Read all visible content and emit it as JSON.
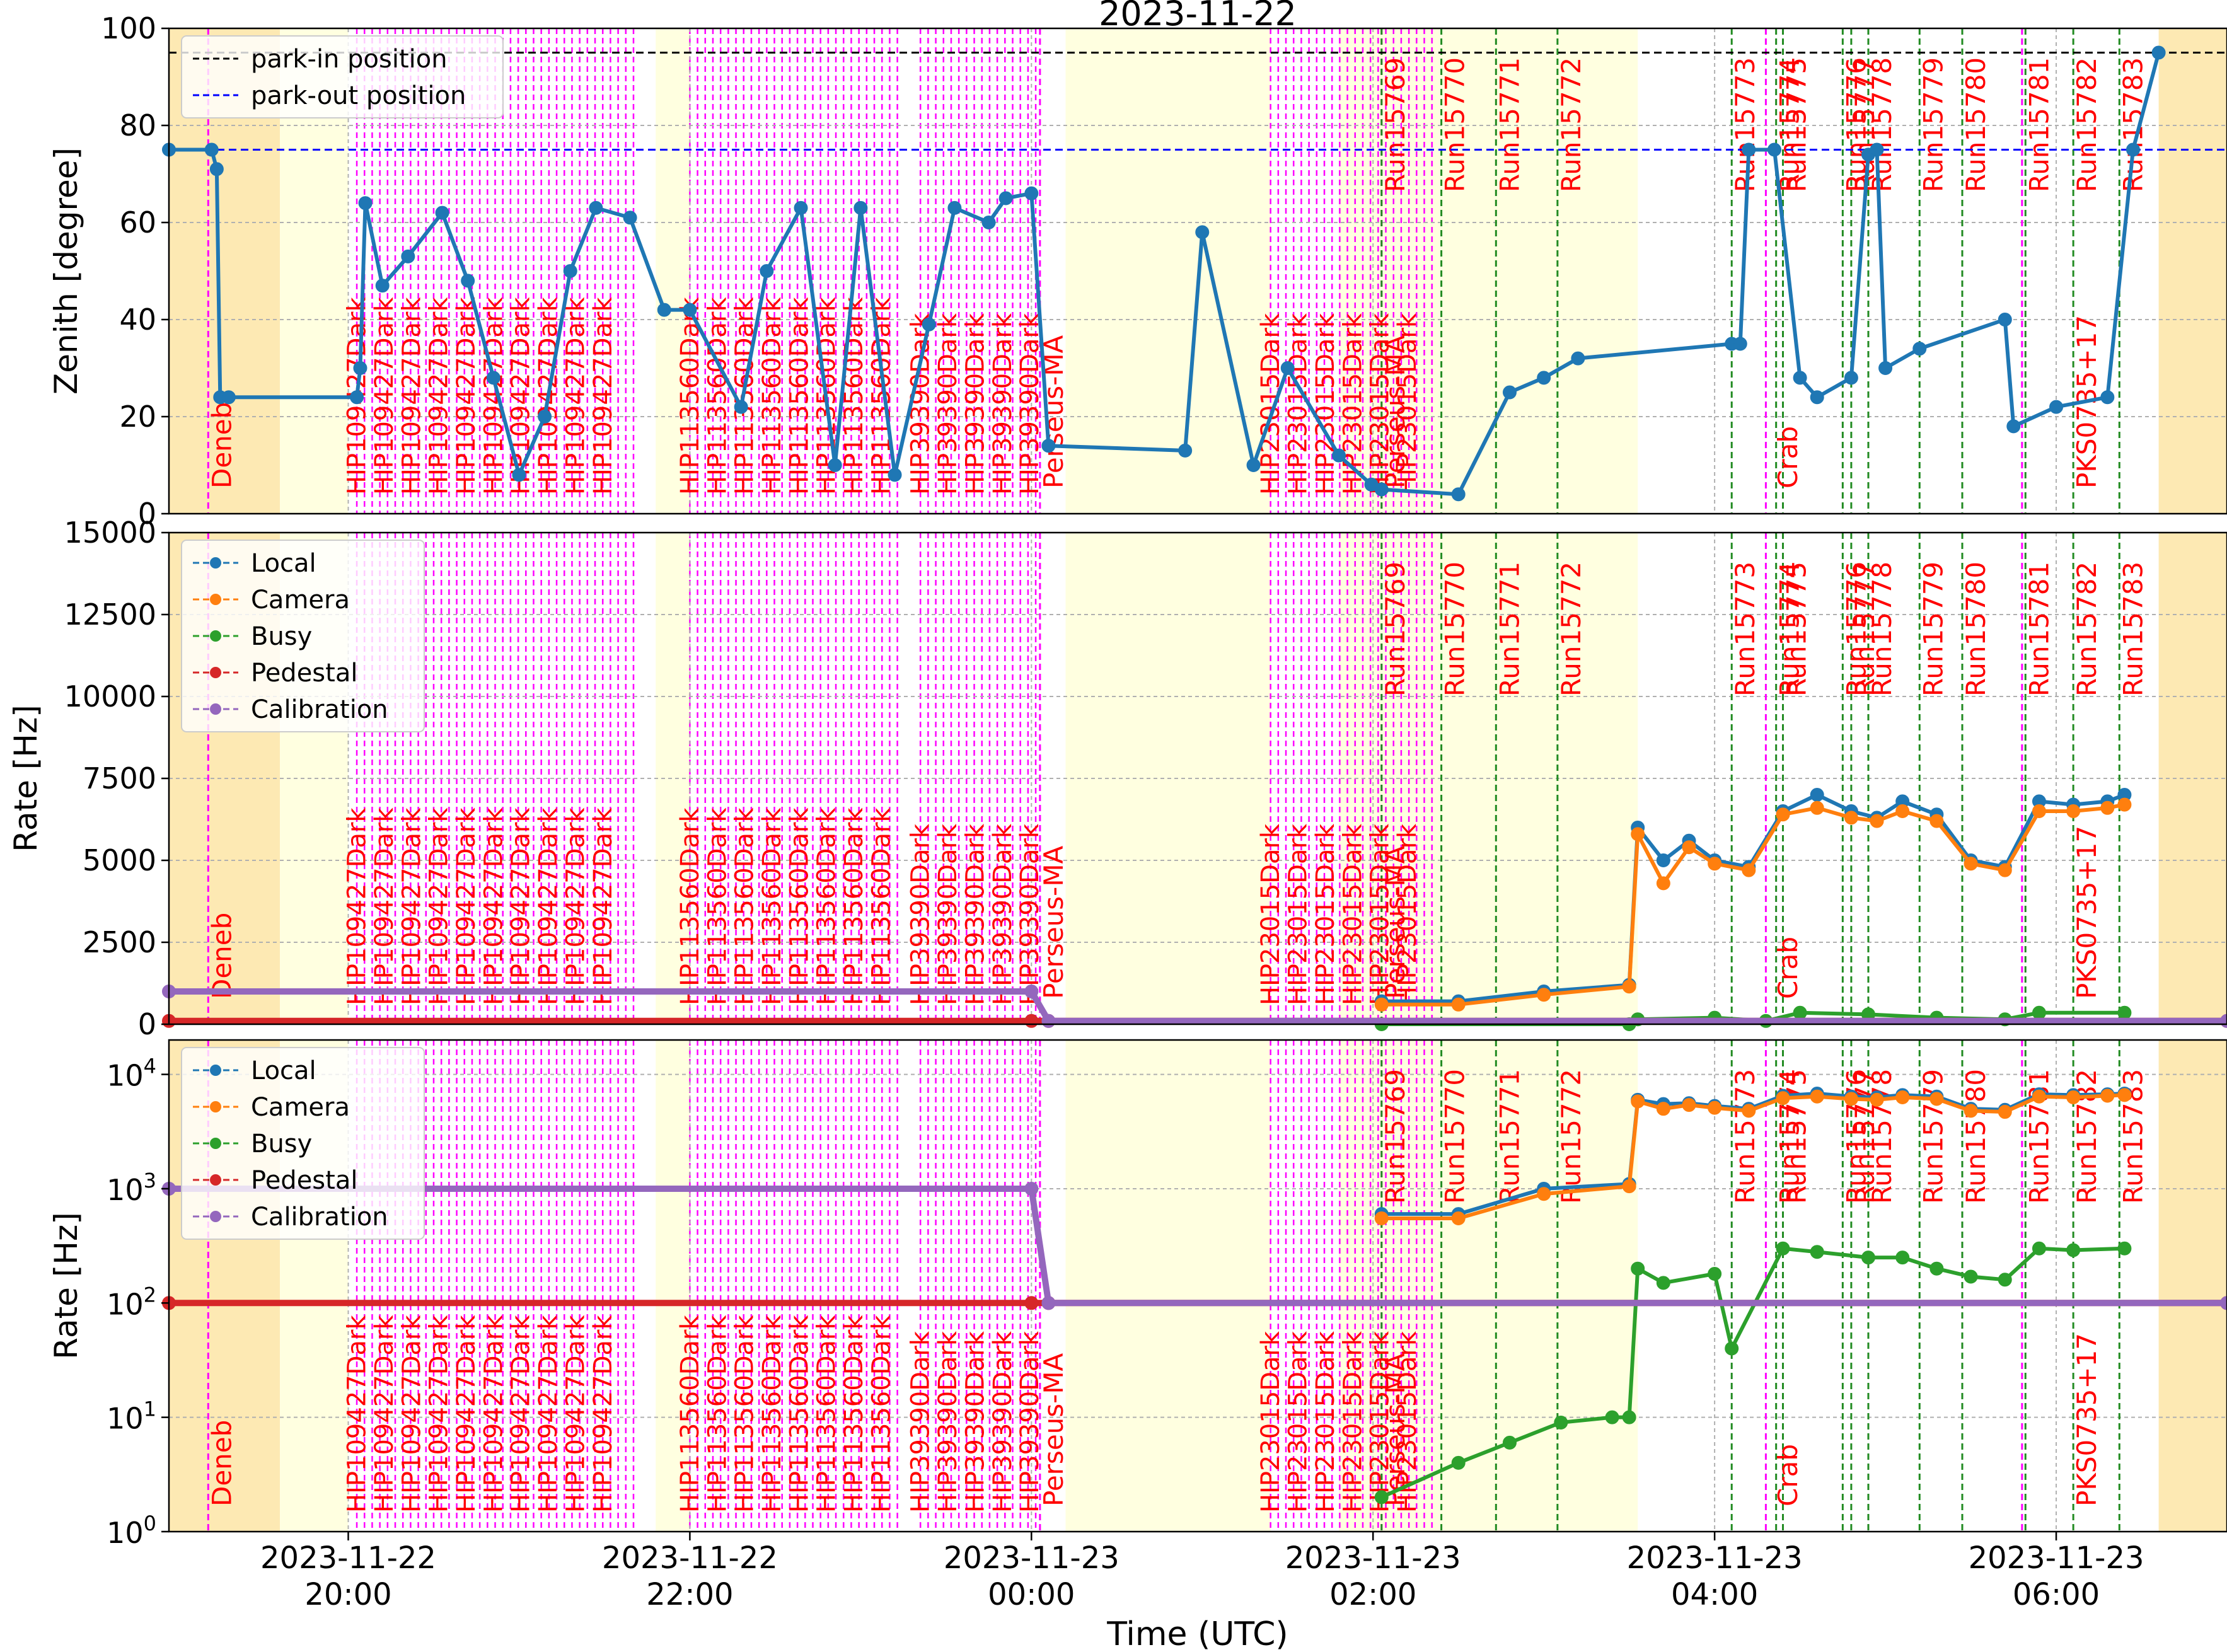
{
  "figure": {
    "title": "2023-11-22",
    "xlabel": "Time (UTC)"
  },
  "time_ticks": [
    {
      "date": "2023-11-22",
      "time": "20:00",
      "hour": 20
    },
    {
      "date": "2023-11-22",
      "time": "22:00",
      "hour": 22
    },
    {
      "date": "2023-11-23",
      "time": "00:00",
      "hour": 24
    },
    {
      "date": "2023-11-23",
      "time": "02:00",
      "hour": 26
    },
    {
      "date": "2023-11-23",
      "time": "04:00",
      "hour": 28
    },
    {
      "date": "2023-11-23",
      "time": "06:00",
      "hour": 30
    }
  ],
  "colors": {
    "local": "#1f77b4",
    "camera": "#ff7f0e",
    "busy": "#2ca02c",
    "pedestal": "#d62728",
    "calibration": "#9467bd",
    "park_in": "#000000",
    "park_out": "#0000ff",
    "dark_label": "#ff0000",
    "source_line": "#ff00ff",
    "run_line": "#228b22",
    "twilight": "#fde9b3",
    "night": "#ffffe0"
  },
  "chart_data": [
    {
      "type": "line",
      "ylabel": "Zenith [degree]",
      "ylim": [
        0,
        100
      ],
      "yticks": [
        "0",
        "20",
        "40",
        "60",
        "80",
        "100"
      ],
      "legend": [
        "park-in position",
        "park-out position"
      ],
      "legend_position": "top-left",
      "reference_lines": [
        {
          "name": "park-in position",
          "value": 95
        },
        {
          "name": "park-out position",
          "value": 75
        }
      ],
      "series": [
        {
          "x": [
            18.95,
            19.2,
            19.23,
            19.25,
            19.3,
            20.05,
            20.07,
            20.1,
            20.2,
            20.35,
            20.55,
            20.7,
            20.85,
            21.0,
            21.15,
            21.3,
            21.45,
            21.65,
            21.85,
            22.0,
            22.3,
            22.45,
            22.65,
            22.85,
            23.0,
            23.2,
            23.4,
            23.55,
            23.75,
            23.85,
            24.0,
            24.1,
            24.9,
            25.0,
            25.3,
            25.5,
            25.8,
            25.99,
            26.05,
            26.5,
            26.8,
            27.0,
            27.2,
            28.1,
            28.15,
            28.2,
            28.35,
            28.5,
            28.6,
            28.8,
            28.9,
            28.95,
            29.0,
            29.2,
            29.7,
            29.75,
            30.0,
            30.3,
            30.45,
            30.6
          ],
          "y": [
            75,
            75,
            71,
            24,
            24,
            24,
            30,
            64,
            47,
            53,
            62,
            48,
            28,
            8,
            20,
            50,
            63,
            61,
            42,
            42,
            22,
            50,
            63,
            10,
            63,
            8,
            39,
            63,
            60,
            65,
            66,
            14,
            13,
            58,
            10,
            30,
            12,
            6,
            5,
            4,
            25,
            28,
            32,
            35,
            35,
            75,
            75,
            28,
            24,
            28,
            74,
            75,
            30,
            34,
            40,
            18,
            22,
            24,
            75,
            95
          ]
        }
      ],
      "source_labels": [
        "Deneb",
        "Perseus-MA",
        "Crab",
        "PKS0735+17"
      ],
      "dark_labels": [
        "HIP109427Dark",
        "HIP113560Dark",
        "HIP39390Dark",
        "HIP23015Dark"
      ],
      "run_labels": [
        "Run15769",
        "Run15770",
        "Run15771",
        "Run15772",
        "Run15773",
        "Run15774",
        "Run15775",
        "Run15776",
        "Run15777",
        "Run15778",
        "Run15779",
        "Run15780",
        "Run15781",
        "Run15782",
        "Run15783"
      ]
    },
    {
      "type": "line",
      "ylabel": "Rate [Hz]",
      "ylim": [
        0,
        15000
      ],
      "yticks": [
        "0",
        "2500",
        "5000",
        "7500",
        "10000",
        "12500",
        "15000"
      ],
      "legend_position": "top-left",
      "series": [
        {
          "name": "Local",
          "x": [
            26.05,
            26.5,
            27.0,
            27.5,
            27.55,
            27.7,
            27.85,
            28.0,
            28.2,
            28.4,
            28.6,
            28.8,
            28.95,
            29.1,
            29.3,
            29.5,
            29.7,
            29.9,
            30.1,
            30.3,
            30.4
          ],
          "y": [
            700,
            700,
            1000,
            1200,
            6000,
            5000,
            5600,
            5000,
            4800,
            6500,
            7000,
            6500,
            6300,
            6800,
            6400,
            5000,
            4800,
            6800,
            6700,
            6800,
            7000
          ]
        },
        {
          "name": "Camera",
          "x": [
            26.05,
            26.5,
            27.0,
            27.5,
            27.55,
            27.7,
            27.85,
            28.0,
            28.2,
            28.4,
            28.6,
            28.8,
            28.95,
            29.1,
            29.3,
            29.5,
            29.7,
            29.9,
            30.1,
            30.3,
            30.4
          ],
          "y": [
            600,
            600,
            900,
            1150,
            5800,
            4300,
            5400,
            4900,
            4700,
            6400,
            6600,
            6300,
            6200,
            6500,
            6200,
            4900,
            4700,
            6500,
            6500,
            6600,
            6700
          ]
        },
        {
          "name": "Busy",
          "x": [
            26.05,
            27.5,
            27.55,
            28.0,
            28.3,
            28.5,
            28.9,
            29.3,
            29.7,
            29.9,
            30.4
          ],
          "y": [
            0,
            0,
            150,
            200,
            100,
            350,
            300,
            200,
            150,
            350,
            350
          ]
        },
        {
          "name": "Pedestal",
          "x": [
            18.95,
            24.0,
            24.1,
            31.0
          ],
          "y": [
            100,
            100,
            100,
            100
          ]
        },
        {
          "name": "Calibration",
          "x": [
            18.95,
            24.0,
            24.1,
            31.0
          ],
          "y": [
            1000,
            1000,
            100,
            100
          ]
        }
      ]
    },
    {
      "type": "line",
      "ylabel": "Rate [Hz]",
      "yscale": "log",
      "ylim": [
        1,
        20000
      ],
      "legend_position": "top-left",
      "series": [
        {
          "name": "Local",
          "x": [
            26.05,
            26.5,
            27.0,
            27.5,
            27.55,
            27.7,
            27.85,
            28.0,
            28.2,
            28.4,
            28.6,
            28.8,
            28.95,
            29.1,
            29.3,
            29.5,
            29.7,
            29.9,
            30.1,
            30.3,
            30.4
          ],
          "y": [
            600,
            600,
            1000,
            1100,
            6000,
            5500,
            5600,
            5300,
            5000,
            6500,
            6800,
            6400,
            6300,
            6600,
            6400,
            5000,
            4900,
            6700,
            6600,
            6700,
            6800
          ]
        },
        {
          "name": "Camera",
          "x": [
            26.05,
            26.5,
            27.0,
            27.5,
            27.55,
            27.7,
            27.85,
            28.0,
            28.2,
            28.4,
            28.6,
            28.8,
            28.95,
            29.1,
            29.3,
            29.5,
            29.7,
            29.9,
            30.1,
            30.3,
            30.4
          ],
          "y": [
            550,
            550,
            900,
            1050,
            5800,
            5000,
            5400,
            5100,
            4800,
            6200,
            6400,
            6100,
            6000,
            6300,
            6100,
            4800,
            4700,
            6400,
            6300,
            6500,
            6600
          ]
        },
        {
          "name": "Busy",
          "x": [
            26.05,
            26.5,
            26.8,
            27.1,
            27.4,
            27.5,
            27.55,
            27.7,
            28.0,
            28.1,
            28.4,
            28.6,
            28.9,
            29.1,
            29.3,
            29.5,
            29.7,
            29.9,
            30.1,
            30.4
          ],
          "y": [
            2,
            4,
            6,
            9,
            10,
            10,
            200,
            150,
            180,
            40,
            300,
            280,
            250,
            250,
            200,
            170,
            160,
            300,
            290,
            300
          ]
        },
        {
          "name": "Pedestal",
          "x": [
            18.95,
            24.0,
            24.1,
            31.0
          ],
          "y": [
            100,
            100,
            100,
            100
          ]
        },
        {
          "name": "Calibration",
          "x": [
            18.95,
            24.0,
            24.1,
            31.0
          ],
          "y": [
            1000,
            1000,
            100,
            100
          ]
        }
      ]
    }
  ]
}
